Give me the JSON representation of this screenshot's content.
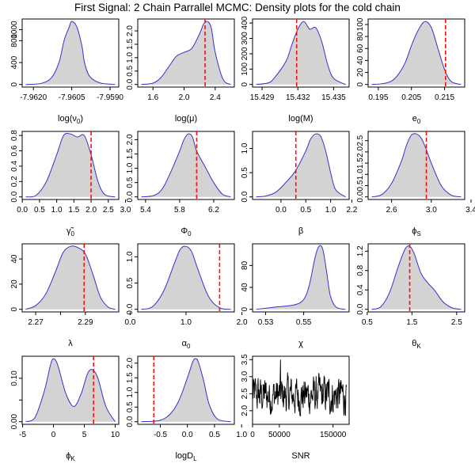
{
  "title": "First Signal: 2 Chain Parrallel MCMC: Density plots for the cold chain",
  "colors": {
    "fill": "#d3d3d3",
    "line": "#3333cc",
    "marker": "#ee1111",
    "trace": "#000000"
  },
  "chart_data": [
    {
      "type": "area",
      "xlabel": "log(ν₀)",
      "xlabel_parts": [
        [
          "log(ν",
          ""
        ],
        [
          "0",
          "sub"
        ],
        [
          ")",
          ""
        ]
      ],
      "xticks": [
        -7.962,
        -7.9605,
        -7.959
      ],
      "xtick_labels": [
        "-7.9620",
        "-7.9605",
        "-7.9590"
      ],
      "yticks": [
        0,
        400,
        800,
        1000
      ],
      "ytick_labels": [
        "0",
        "400",
        "800",
        "1000"
      ],
      "x": [
        -7.9623,
        -7.9617,
        -7.9613,
        -7.961,
        -7.9608,
        -7.9606,
        -7.9605,
        -7.9603,
        -7.9601,
        -7.96,
        -7.9598,
        -7.9594,
        -7.9588
      ],
      "y": [
        0,
        20,
        120,
        400,
        800,
        1050,
        1150,
        1050,
        700,
        400,
        150,
        30,
        0
      ]
    },
    {
      "type": "area",
      "xlabel": "log(μ)",
      "xlabel_parts": [
        [
          "log(μ)",
          ""
        ]
      ],
      "xticks": [
        1.6,
        2.0,
        2.4
      ],
      "xtick_labels": [
        "1.6",
        "2.0",
        "2.4"
      ],
      "yticks": [
        0,
        0.5,
        1.0,
        1.5,
        2.0
      ],
      "ytick_labels": [
        "0.0",
        "0.5",
        "1.0",
        "1.5",
        "2.0"
      ],
      "x": [
        1.45,
        1.6,
        1.7,
        1.8,
        1.9,
        2.0,
        2.1,
        2.2,
        2.25,
        2.3,
        2.35,
        2.4,
        2.5,
        2.6
      ],
      "y": [
        0,
        0.05,
        0.25,
        0.65,
        1.05,
        1.2,
        1.35,
        1.9,
        2.25,
        2.35,
        2.1,
        1.2,
        0.2,
        0
      ],
      "marker": 2.27
    },
    {
      "type": "area",
      "xlabel": "log(M)",
      "xlabel_parts": [
        [
          "log(M)",
          ""
        ]
      ],
      "xticks": [
        15.429,
        15.432,
        15.435
      ],
      "xtick_labels": [
        "15.429",
        "15.432",
        "15.435"
      ],
      "yticks": [
        0,
        100,
        200,
        300,
        400
      ],
      "ytick_labels": [
        "0",
        "100",
        "200",
        "300",
        "400"
      ],
      "x": [
        15.4285,
        15.4295,
        15.43,
        15.431,
        15.4315,
        15.432,
        15.4325,
        15.433,
        15.4335,
        15.434,
        15.4345,
        15.435,
        15.436
      ],
      "y": [
        0,
        10,
        40,
        150,
        260,
        360,
        410,
        360,
        370,
        280,
        130,
        40,
        0
      ],
      "marker": 15.4319
    },
    {
      "type": "area",
      "xlabel": "e₀",
      "xlabel_parts": [
        [
          "e",
          ""
        ],
        [
          "0",
          "sub"
        ]
      ],
      "xticks": [
        0.195,
        0.205,
        0.215
      ],
      "xtick_labels": [
        "0.195",
        "0.205",
        "0.215"
      ],
      "yticks": [
        0,
        20,
        40,
        60,
        80,
        100
      ],
      "ytick_labels": [
        "0",
        "20",
        "40",
        "60",
        "80",
        "100"
      ],
      "x": [
        0.193,
        0.197,
        0.2,
        0.203,
        0.205,
        0.207,
        0.209,
        0.211,
        0.213,
        0.215,
        0.217,
        0.22
      ],
      "y": [
        0,
        2,
        10,
        35,
        65,
        90,
        105,
        95,
        60,
        25,
        5,
        0
      ],
      "marker": 0.2153
    },
    {
      "type": "area",
      "xlabel": "γ̃₀",
      "xlabel_parts": [
        [
          "γ̃",
          ""
        ],
        [
          "0",
          "sub"
        ]
      ],
      "xticks": [
        0.0,
        0.5,
        1.0,
        1.5,
        2.0,
        2.5,
        3.0
      ],
      "xtick_labels": [
        "0.0",
        "0.5",
        "1.0",
        "1.5",
        "2.0",
        "2.5",
        "3.0"
      ],
      "yticks": [
        0,
        0.2,
        0.4,
        0.6,
        0.8
      ],
      "ytick_labels": [
        "0.0",
        "0.2",
        "0.4",
        "0.6",
        "0.8"
      ],
      "x": [
        0.1,
        0.4,
        0.7,
        1.0,
        1.2,
        1.4,
        1.6,
        1.8,
        2.0,
        2.2,
        2.4,
        2.7
      ],
      "y": [
        0,
        0.02,
        0.2,
        0.55,
        0.8,
        0.82,
        0.78,
        0.8,
        0.55,
        0.2,
        0.03,
        0
      ],
      "marker": 2.0
    },
    {
      "type": "area",
      "xlabel": "Φ₀",
      "xlabel_parts": [
        [
          "Φ",
          ""
        ],
        [
          "0",
          "sub"
        ]
      ],
      "xticks": [
        5.4,
        5.8,
        6.2
      ],
      "xtick_labels": [
        "5.4",
        "5.8",
        "6.2"
      ],
      "yticks": [
        0,
        0.5,
        1.0,
        1.5,
        2.0
      ],
      "ytick_labels": [
        "0.0",
        "0.5",
        "1.0",
        "1.5",
        "2.0"
      ],
      "x": [
        5.35,
        5.5,
        5.6,
        5.7,
        5.8,
        5.85,
        5.9,
        5.95,
        6.0,
        6.1,
        6.2,
        6.3,
        6.4
      ],
      "y": [
        0,
        0.05,
        0.3,
        0.9,
        1.6,
        2.0,
        2.2,
        2.1,
        1.6,
        1.05,
        0.5,
        0.1,
        0
      ],
      "marker": 6.0
    },
    {
      "type": "area",
      "xlabel": "β",
      "xlabel_parts": [
        [
          "β",
          ""
        ]
      ],
      "xticks": [
        0.0,
        0.5,
        1.0
      ],
      "xtick_labels": [
        "0.0",
        "0.5",
        "1.0"
      ],
      "yticks": [
        0,
        0.5,
        1.0
      ],
      "ytick_labels": [
        "0.0",
        "0.5",
        "1.0"
      ],
      "x": [
        -0.5,
        -0.3,
        -0.1,
        0.1,
        0.3,
        0.5,
        0.6,
        0.7,
        0.8,
        0.9,
        1.0,
        1.1,
        1.3
      ],
      "y": [
        0,
        0.02,
        0.1,
        0.3,
        0.55,
        0.95,
        1.2,
        1.3,
        1.25,
        0.95,
        0.5,
        0.15,
        0
      ],
      "marker": 0.3
    },
    {
      "type": "area",
      "xlabel": "φ_S",
      "xlabel_parts": [
        [
          "ϕ",
          ""
        ],
        [
          "S",
          "sub"
        ]
      ],
      "xticks": [
        2.2,
        2.6,
        3.0,
        3.4
      ],
      "xtick_labels": [
        "2.2",
        "2.6",
        "3.0",
        "3.4"
      ],
      "yticks": [
        0,
        0.5,
        1.0,
        1.5,
        2.0,
        2.5
      ],
      "ytick_labels": [
        "0.0",
        "0.5",
        "1.0",
        "1.5",
        "2.0",
        "2.5"
      ],
      "x": [
        2.4,
        2.5,
        2.6,
        2.7,
        2.75,
        2.8,
        2.85,
        2.9,
        2.95,
        3.0,
        3.1,
        3.2,
        3.3
      ],
      "y": [
        0,
        0.1,
        0.6,
        1.6,
        2.3,
        2.75,
        2.8,
        2.6,
        2.1,
        1.5,
        0.5,
        0.08,
        0
      ],
      "marker": 2.95
    },
    {
      "type": "area",
      "xlabel": "λ",
      "xlabel_parts": [
        [
          "λ",
          ""
        ]
      ],
      "xticks": [
        2.27,
        2.28,
        2.29
      ],
      "xtick_labels": [
        "2.27",
        "",
        "2.29"
      ],
      "yticks": [
        0,
        20,
        40
      ],
      "ytick_labels": [
        "0",
        "20",
        "40"
      ],
      "x": [
        2.266,
        2.27,
        2.274,
        2.278,
        2.281,
        2.284,
        2.287,
        2.29,
        2.293,
        2.296,
        2.299,
        2.302
      ],
      "y": [
        0,
        3,
        12,
        30,
        45,
        50,
        49,
        44,
        28,
        10,
        2,
        0
      ],
      "marker": 2.2895
    },
    {
      "type": "area",
      "xlabel": "α₀",
      "xlabel_parts": [
        [
          "α",
          ""
        ],
        [
          "0",
          "sub"
        ]
      ],
      "xticks": [
        0.0,
        1.0,
        2.0
      ],
      "xtick_labels": [
        "0.0",
        "1.0",
        "2.0"
      ],
      "yticks": [
        0,
        0.5,
        1.0
      ],
      "ytick_labels": [
        "0.0",
        "0.5",
        "1.0"
      ],
      "x": [
        0.2,
        0.4,
        0.6,
        0.8,
        0.9,
        1.0,
        1.1,
        1.2,
        1.4,
        1.6,
        1.8
      ],
      "y": [
        0,
        0.05,
        0.35,
        0.9,
        1.15,
        1.2,
        1.1,
        0.8,
        0.25,
        0.03,
        0
      ],
      "marker": 1.6
    },
    {
      "type": "area",
      "xlabel": "χ",
      "xlabel_parts": [
        [
          "χ",
          ""
        ]
      ],
      "xticks": [
        0.53,
        0.55
      ],
      "xtick_labels": [
        "0.53",
        "0.55"
      ],
      "yticks": [
        0,
        40,
        80
      ],
      "ytick_labels": [
        "0",
        "40",
        "80"
      ],
      "x": [
        0.525,
        0.535,
        0.545,
        0.55,
        0.553,
        0.556,
        0.558,
        0.56,
        0.562,
        0.564,
        0.567,
        0.572
      ],
      "y": [
        0,
        4,
        8,
        18,
        45,
        95,
        115,
        110,
        70,
        25,
        4,
        0
      ]
    },
    {
      "type": "area",
      "xlabel": "θ_K",
      "xlabel_parts": [
        [
          "θ",
          ""
        ],
        [
          "K",
          "sub"
        ]
      ],
      "xticks": [
        0.5,
        1.5,
        2.5
      ],
      "xtick_labels": [
        "0.5",
        "1.5",
        "2.5"
      ],
      "yticks": [
        0,
        0.4,
        0.8,
        1.2
      ],
      "ytick_labels": [
        "0.0",
        "0.4",
        "0.8",
        "1.2"
      ],
      "x": [
        0.6,
        0.8,
        1.0,
        1.2,
        1.35,
        1.45,
        1.55,
        1.7,
        1.85,
        2.0,
        2.2,
        2.4,
        2.6
      ],
      "y": [
        0,
        0.05,
        0.35,
        0.9,
        1.25,
        1.3,
        1.15,
        0.75,
        0.55,
        0.4,
        0.15,
        0.03,
        0
      ],
      "marker": 1.45
    },
    {
      "type": "area",
      "xlabel": "φ_K",
      "xlabel_parts": [
        [
          "ϕ",
          ""
        ],
        [
          "K",
          "sub"
        ]
      ],
      "xticks": [
        -5,
        0,
        5,
        10
      ],
      "xtick_labels": [
        "-5",
        "0",
        "5",
        "10"
      ],
      "yticks": [
        0,
        0.05,
        0.1
      ],
      "ytick_labels": [
        "0.00",
        "",
        "0.10"
      ],
      "x": [
        -4.5,
        -3,
        -1.5,
        -0.5,
        0,
        0.7,
        2,
        3.3,
        4.5,
        5.5,
        6.3,
        7.2,
        8.5,
        10
      ],
      "y": [
        0,
        0.01,
        0.07,
        0.13,
        0.145,
        0.13,
        0.065,
        0.035,
        0.065,
        0.11,
        0.12,
        0.1,
        0.035,
        0
      ],
      "marker": 6.5
    },
    {
      "type": "area",
      "xlabel": "logD_L",
      "xlabel_parts": [
        [
          "logD",
          ""
        ],
        [
          "L",
          "sub"
        ]
      ],
      "xticks": [
        -0.5,
        0.0,
        0.5,
        1.0
      ],
      "xtick_labels": [
        "-0.5",
        "0.0",
        "0.5",
        "1.0"
      ],
      "yticks": [
        0,
        0.5,
        1.0,
        1.5,
        2.0
      ],
      "ytick_labels": [
        "0.0",
        "0.5",
        "1.0",
        "1.5",
        "2.0"
      ],
      "x": [
        -0.85,
        -0.5,
        -0.3,
        -0.15,
        0.0,
        0.1,
        0.15,
        0.2,
        0.3,
        0.4,
        0.55,
        0.8
      ],
      "y": [
        0,
        0.05,
        0.3,
        0.75,
        1.5,
        2.05,
        2.15,
        2.05,
        1.4,
        0.6,
        0.1,
        0
      ],
      "marker": -0.62
    },
    {
      "type": "line",
      "xlabel": "SNR",
      "xlabel_parts": [
        [
          "SNR",
          ""
        ]
      ],
      "xticks": [
        0,
        50000,
        150000
      ],
      "xtick_labels": [
        "0",
        "50000",
        "150000"
      ],
      "yticks": [
        2.0,
        2.5,
        3.0,
        3.5
      ],
      "ytick_labels": [
        "2.0",
        "2.5",
        "3.0",
        "3.5"
      ],
      "xlim": [
        0,
        180000
      ],
      "ylim": [
        1.6,
        3.6
      ],
      "series_description": "MCMC trace fluctuating roughly between 1.9 and 3.1, centred near 2.45, with a peak near 3.5"
    }
  ]
}
